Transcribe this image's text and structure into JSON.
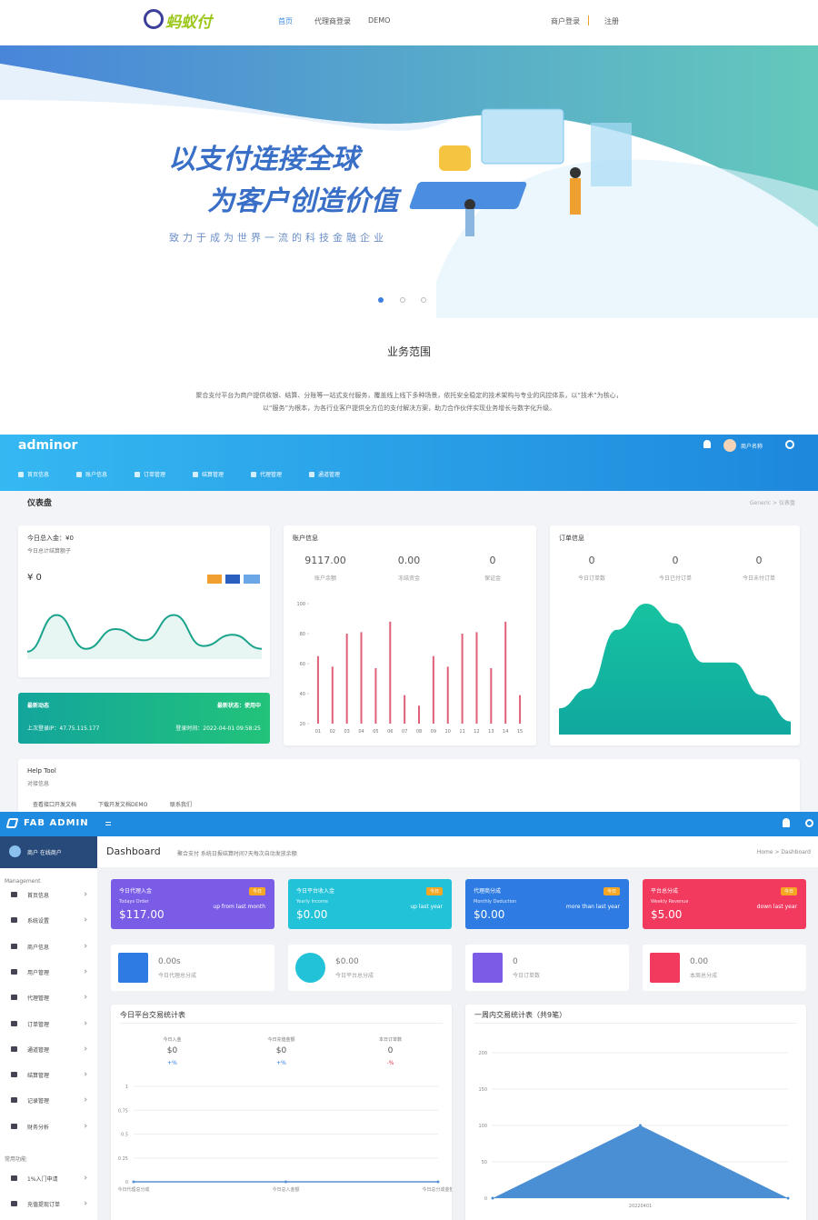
{
  "site": {
    "logo": "蚂蚁付",
    "nav": [
      "首页",
      "代理商登录",
      "DEMO"
    ],
    "account": [
      "商户登录",
      "注册"
    ],
    "banner": {
      "line1": "以支付连接全球",
      "line2": "为客户创造价值",
      "slogan": "致力于成为世界一流的科技金融企业"
    },
    "section": {
      "title": "业务范围",
      "text": "聚合支付平台为商户提供收银、结算、分账等一站式支付服务，覆盖线上线下多种场景，依托安全稳定的技术架构与专业的风控体系，以“技术”为核心，以“服务”为根本，为各行业客户提供全方位的支付解决方案，助力合作伙伴实现业务增长与数字化升级。"
    }
  },
  "adminor": {
    "logo": "adminor",
    "user": "商户名称",
    "menu": [
      "首页信息",
      "账户信息",
      "订单管理",
      "结算管理",
      "代理管理",
      "通道管理"
    ],
    "page_title": "仪表盘",
    "breadcrumb": "Generic > 仪表盘",
    "income_card": {
      "title": "今日总入金：¥0",
      "subtitle": "今日总计结算额子",
      "amount": "¥ 0",
      "chart": {
        "type": "line",
        "color": "#1aa38c",
        "values": [
          10,
          75,
          15,
          50,
          30,
          75,
          20,
          40,
          15
        ],
        "ylim": [
          0,
          100
        ]
      }
    },
    "status_card": {
      "title": "最新动态",
      "state": "最新状态：使用中",
      "ip": "上次登录IP：47.75.115.177",
      "time": "登录时间：2022-04-01 09:58:25"
    },
    "account_card": {
      "title": "账户信息",
      "stats": [
        {
          "value": "9117.00",
          "label": "账户余额"
        },
        {
          "value": "0.00",
          "label": "冻结资金"
        },
        {
          "value": "0",
          "label": "保证金"
        }
      ],
      "chart": {
        "type": "bar",
        "color": "#e0607a",
        "categories": [
          "01",
          "02",
          "03",
          "04",
          "05",
          "06",
          "07",
          "08",
          "09",
          "10",
          "11",
          "12",
          "13",
          "14",
          "15"
        ],
        "values": [
          65,
          58,
          80,
          81,
          57,
          88,
          39,
          32,
          65,
          58,
          80,
          81,
          57,
          88,
          39
        ],
        "ylim": [
          20,
          100
        ],
        "yticks": [
          20,
          40,
          60,
          80,
          100
        ]
      }
    },
    "order_card": {
      "title": "订单信息",
      "stats": [
        {
          "value": "0",
          "label": "今日订单数"
        },
        {
          "value": "0",
          "label": "今日已付订单"
        },
        {
          "value": "0",
          "label": "今日未付订单"
        }
      ],
      "chart": {
        "type": "area",
        "color": "#17c3a0",
        "values": [
          20,
          35,
          80,
          100,
          85,
          55,
          55,
          30,
          10
        ],
        "ylim": [
          0,
          100
        ]
      }
    },
    "help": {
      "title": "Help Tool",
      "subtitle": "对接信息",
      "links": [
        "查看接口开发文档",
        "下载开发文档DEMO",
        "联系我们"
      ]
    }
  },
  "fab": {
    "logo": "FAB ADMIN",
    "user": "商户 在线商户",
    "section_main": "Management",
    "menu": [
      "首页信息",
      "系统设置",
      "商户信息",
      "用户管理",
      "代理管理",
      "订单管理",
      "通道管理",
      "结算管理",
      "记录管理",
      "财务分析"
    ],
    "section_common": "常用功能",
    "common": [
      "1%入门申请",
      "充值提现订单"
    ],
    "title": "Dashboard",
    "subtitle": "聚合支付 系统日报结算时间7天每次自动发放余额",
    "breadcrumb": "Home > Dashboard",
    "cards": [
      {
        "title": "今日代理入金",
        "sub": "Todays Order",
        "value": "$117.00",
        "badge": "今日",
        "trend": "up from last month"
      },
      {
        "title": "今日平台收入金",
        "sub": "Yearly Income",
        "value": "$0.00",
        "badge": "今日",
        "trend": "up last year"
      },
      {
        "title": "代理商分成",
        "sub": "Monthly Deduction",
        "value": "$0.00",
        "badge": "今日",
        "trend": "more than last year"
      },
      {
        "title": "平台总分成",
        "sub": "Weekly Revenue",
        "value": "$5.00",
        "badge": "今日",
        "trend": "down last year"
      }
    ],
    "mini": [
      {
        "value": "0.00s",
        "label": "今日代理总分成"
      },
      {
        "value": "$0.00",
        "label": "今日平台总分成"
      },
      {
        "value": "0",
        "label": "今日订单数"
      },
      {
        "value": "0.00",
        "label": "本周总分成"
      }
    ],
    "left_chart": {
      "title": "今日平台交易统计表",
      "stats": [
        {
          "label": "今日入金",
          "value": "$0",
          "change": "+%"
        },
        {
          "label": "今日充值金额",
          "value": "$0",
          "change": "+%"
        },
        {
          "label": "本日订单数",
          "value": "0",
          "change": "-%"
        }
      ],
      "type": "line",
      "color": "#5b8fd6",
      "categories": [
        "今日代理总分成",
        "今日总入金额",
        "今日总分成金额"
      ],
      "values": [
        0,
        0,
        0
      ],
      "ylim": [
        0,
        1
      ],
      "yticks": [
        0,
        0.25,
        0.5,
        0.75,
        1
      ]
    },
    "right_chart": {
      "title": "一周内交易统计表（共9笔）",
      "type": "area",
      "color": "#4a8fd4",
      "categories": [
        null,
        "20220401",
        null
      ],
      "values": [
        0,
        100,
        0
      ],
      "ylim": [
        0,
        200
      ],
      "yticks": [
        0,
        50,
        100,
        150,
        200
      ]
    }
  }
}
